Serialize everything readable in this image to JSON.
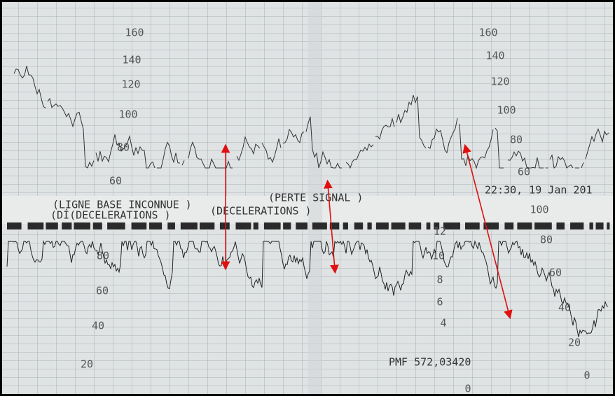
{
  "annotations": {
    "baseline": "(LIGNE BASE INCONNUE )",
    "signal": "(PERTE SIGNAL )",
    "timestamp": "22:30, 19 Jan 201",
    "decel1": "(DÍ(DECELERATIONS )",
    "decel2": "(DECELERATIONS )",
    "pmf": "PMF 572,03420"
  },
  "fhr_scale_left": [
    160,
    140,
    120,
    100,
    80,
    60
  ],
  "fhr_scale_right": [
    160,
    140,
    120,
    100,
    80,
    60
  ],
  "uc_scale_left": [
    80,
    60,
    40,
    20
  ],
  "uc_scale_mid": [
    12,
    10,
    8,
    6,
    4,
    0
  ],
  "uc_scale_right": [
    100,
    80,
    60,
    40,
    20,
    0
  ]
}
